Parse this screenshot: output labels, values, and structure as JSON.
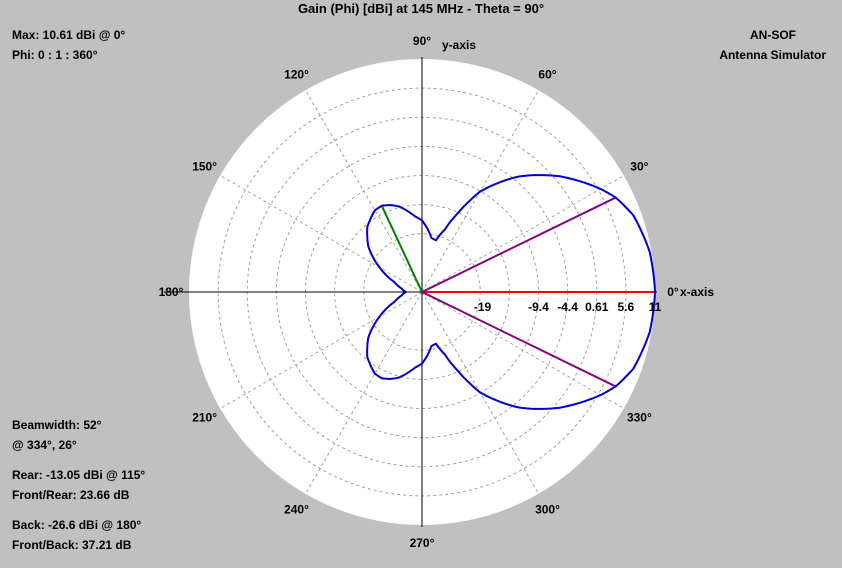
{
  "title": "Gain (Phi) [dBi] at 145 MHz - Theta = 90°",
  "brand": {
    "line1": "AN-SOF",
    "line2": "Antenna Simulator"
  },
  "info": {
    "max": "Max: 10.61 dBi @ 0°",
    "phi": "Phi: 0 : 1 : 360°",
    "beamwidth": "Beamwidth: 52°",
    "beam_at": "@ 334°, 26°",
    "rear": "Rear: -13.05 dBi @ 115°",
    "front_rear": "Front/Rear: 23.66 dB",
    "back": "Back: -26.6 dBi @ 180°",
    "front_back": "Front/Back: 37.21 dB"
  },
  "chart_data": {
    "type": "polar",
    "title": "Gain (Phi) [dBi] at 145 MHz - Theta = 90°",
    "angle_labels": [
      {
        "deg": 0,
        "text": "0°"
      },
      {
        "deg": 30,
        "text": "30°"
      },
      {
        "deg": 60,
        "text": "60°"
      },
      {
        "deg": 90,
        "text": "90°"
      },
      {
        "deg": 120,
        "text": "120°"
      },
      {
        "deg": 150,
        "text": "150°"
      },
      {
        "deg": 180,
        "text": "180°"
      },
      {
        "deg": 210,
        "text": "210°"
      },
      {
        "deg": 240,
        "text": "240°"
      },
      {
        "deg": 270,
        "text": "270°"
      },
      {
        "deg": 300,
        "text": "300°"
      },
      {
        "deg": 330,
        "text": "330°"
      }
    ],
    "axis_labels": {
      "x": "x-axis",
      "y": "y-axis"
    },
    "radial_min_dbi": -29.39,
    "radial_max_dbi": 10.61,
    "radial_ticks": [
      {
        "value": -19,
        "text": "-19"
      },
      {
        "value": -9.4,
        "text": "-9.4"
      },
      {
        "value": -4.4,
        "text": "-4.4"
      },
      {
        "value": 0.61,
        "text": "0.61"
      },
      {
        "value": 5.6,
        "text": "5.6"
      },
      {
        "value": 10.61,
        "text": "11"
      }
    ],
    "rings": [
      -19.39,
      -14.39,
      -9.39,
      -4.39,
      0.61,
      5.61
    ],
    "pattern": {
      "phi_deg": [
        0,
        10,
        20,
        26,
        30,
        40,
        50,
        60,
        65,
        70,
        75,
        80,
        85,
        90,
        95,
        100,
        105,
        110,
        115,
        120,
        130,
        140,
        150,
        160,
        170,
        180
      ],
      "gain_dbi": [
        10.61,
        10.3,
        9.2,
        7.6,
        6.0,
        1.5,
        -3.5,
        -9.5,
        -14.0,
        -18.0,
        -20.2,
        -20.0,
        -18.5,
        -17.1,
        -16.4,
        -15.3,
        -14.2,
        -13.5,
        -13.05,
        -13.2,
        -14.8,
        -17.4,
        -21.0,
        -24.3,
        -25.8,
        -26.6
      ]
    },
    "markers": [
      {
        "name": "max",
        "deg": 0,
        "gain_dbi": 10.61,
        "color": "#ff0000"
      },
      {
        "name": "beam-edge-upper",
        "deg": 26,
        "gain_dbi": 7.6,
        "color": "#800080"
      },
      {
        "name": "beam-edge-lower",
        "deg": 334,
        "gain_dbi": 7.6,
        "color": "#800080"
      },
      {
        "name": "rear",
        "deg": 115,
        "gain_dbi": -13.05,
        "color": "#008000"
      }
    ],
    "colors": {
      "pattern": "#0000d0",
      "background": "#c0c0c0",
      "disk": "#ffffff",
      "grid": "#a0a0a0"
    },
    "grid": true
  }
}
